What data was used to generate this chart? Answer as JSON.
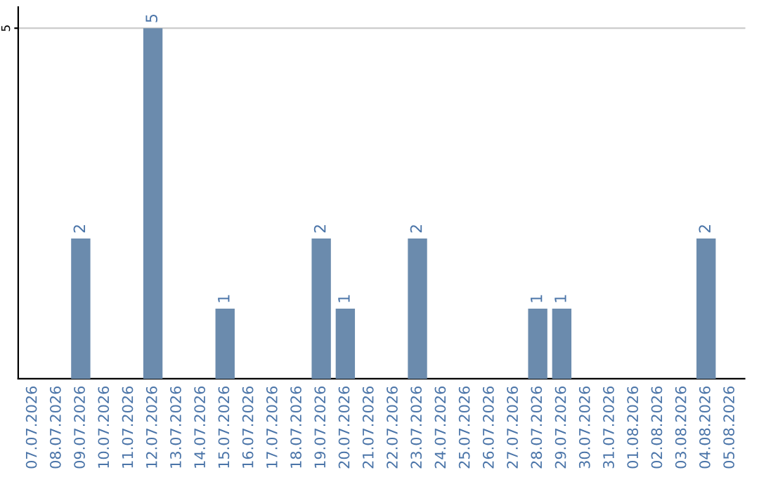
{
  "chart_data": {
    "type": "bar",
    "categories": [
      "07.07.2026",
      "08.07.2026",
      "09.07.2026",
      "10.07.2026",
      "11.07.2026",
      "12.07.2026",
      "13.07.2026",
      "14.07.2026",
      "15.07.2026",
      "16.07.2026",
      "17.07.2026",
      "18.07.2026",
      "19.07.2026",
      "20.07.2026",
      "21.07.2026",
      "22.07.2026",
      "23.07.2026",
      "24.07.2026",
      "25.07.2026",
      "26.07.2026",
      "27.07.2026",
      "28.07.2026",
      "29.07.2026",
      "30.07.2026",
      "31.07.2026",
      "01.08.2026",
      "02.08.2026",
      "03.08.2026",
      "04.08.2026",
      "05.08.2026"
    ],
    "values": [
      0,
      0,
      2,
      0,
      0,
      5,
      0,
      0,
      1,
      0,
      0,
      0,
      2,
      1,
      0,
      0,
      2,
      0,
      0,
      0,
      0,
      1,
      1,
      0,
      0,
      0,
      0,
      0,
      2,
      0
    ],
    "color": "#6b8bad",
    "value_labels": [
      null,
      null,
      "2",
      null,
      null,
      "5",
      null,
      null,
      "1",
      null,
      null,
      null,
      "2",
      "1",
      null,
      null,
      "2",
      null,
      null,
      null,
      null,
      "1",
      "1",
      null,
      null,
      null,
      null,
      null,
      "2",
      null
    ],
    "ylim": [
      0,
      5.3
    ],
    "yticks": [
      5
    ],
    "grid": "y",
    "legend": false
  }
}
